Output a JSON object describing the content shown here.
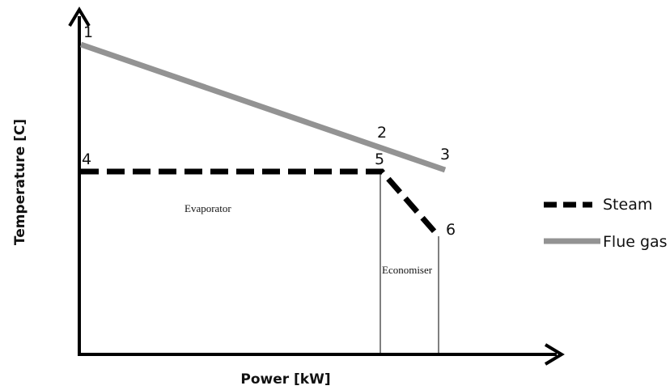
{
  "axes": {
    "x_label": "Power [kW]",
    "y_label": "Temperature [C]"
  },
  "points": [
    "1",
    "2",
    "3",
    "4",
    "5",
    "6"
  ],
  "regions": [
    "Evaporator",
    "Economiser"
  ],
  "legend": [
    {
      "name": "Steam"
    },
    {
      "name": "Flue gas"
    }
  ]
}
